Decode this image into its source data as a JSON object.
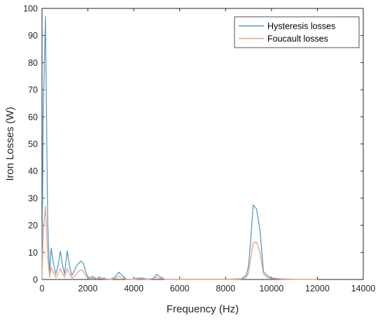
{
  "chart_data": {
    "type": "line",
    "title": "",
    "xlabel": "Frequency (Hz)",
    "ylabel": "Iron Losses (W)",
    "xlim": [
      0,
      14000
    ],
    "ylim": [
      0,
      100
    ],
    "xticks": [
      0,
      2000,
      4000,
      6000,
      8000,
      10000,
      12000,
      14000
    ],
    "yticks": [
      0,
      10,
      20,
      30,
      40,
      50,
      60,
      70,
      80,
      90,
      100
    ],
    "grid": false,
    "legend_position": "top-right",
    "series": [
      {
        "name": "Hysteresis losses",
        "color": "#5b9bc5",
        "points": [
          [
            0,
            0
          ],
          [
            50,
            60
          ],
          [
            150,
            97
          ],
          [
            250,
            20
          ],
          [
            330,
            2
          ],
          [
            400,
            11.5
          ],
          [
            500,
            6
          ],
          [
            600,
            2
          ],
          [
            700,
            5
          ],
          [
            800,
            10.5
          ],
          [
            900,
            5
          ],
          [
            980,
            2
          ],
          [
            1100,
            10.5
          ],
          [
            1200,
            5
          ],
          [
            1300,
            1.5
          ],
          [
            1400,
            3
          ],
          [
            1500,
            5
          ],
          [
            1600,
            6
          ],
          [
            1700,
            6.8
          ],
          [
            1800,
            6
          ],
          [
            1900,
            3
          ],
          [
            2000,
            1
          ],
          [
            2100,
            0.5
          ],
          [
            2200,
            1.2
          ],
          [
            2300,
            0.6
          ],
          [
            2400,
            0.3
          ],
          [
            2500,
            1
          ],
          [
            2600,
            0.3
          ],
          [
            2700,
            0.6
          ],
          [
            2800,
            0.2
          ],
          [
            3000,
            0.1
          ],
          [
            3200,
            1
          ],
          [
            3350,
            2.7
          ],
          [
            3500,
            1.5
          ],
          [
            3650,
            0.2
          ],
          [
            3800,
            0.1
          ],
          [
            4000,
            0.1
          ],
          [
            4200,
            0.5
          ],
          [
            4400,
            0.5
          ],
          [
            4600,
            0.1
          ],
          [
            4800,
            0.1
          ],
          [
            5000,
            1.8
          ],
          [
            5150,
            1
          ],
          [
            5350,
            0.1
          ],
          [
            6000,
            0.05
          ],
          [
            7000,
            0.05
          ],
          [
            8000,
            0.05
          ],
          [
            8700,
            0.3
          ],
          [
            8900,
            1.5
          ],
          [
            9000,
            5
          ],
          [
            9100,
            15
          ],
          [
            9200,
            27.5
          ],
          [
            9350,
            26
          ],
          [
            9500,
            18
          ],
          [
            9650,
            3
          ],
          [
            9800,
            1.5
          ],
          [
            10000,
            0.5
          ],
          [
            10500,
            0.2
          ],
          [
            11000,
            0.1
          ],
          [
            11500,
            0.1
          ],
          [
            12000,
            0.1
          ]
        ]
      },
      {
        "name": "Foucault losses",
        "color": "#e8a383",
        "points": [
          [
            0,
            0
          ],
          [
            60,
            18
          ],
          [
            150,
            27
          ],
          [
            250,
            8
          ],
          [
            330,
            0.8
          ],
          [
            400,
            4.5
          ],
          [
            500,
            2.5
          ],
          [
            600,
            0.8
          ],
          [
            700,
            2
          ],
          [
            800,
            4
          ],
          [
            900,
            2
          ],
          [
            980,
            0.8
          ],
          [
            1100,
            4
          ],
          [
            1200,
            2
          ],
          [
            1300,
            0.6
          ],
          [
            1400,
            1
          ],
          [
            1500,
            2
          ],
          [
            1600,
            3
          ],
          [
            1700,
            3.6
          ],
          [
            1800,
            3
          ],
          [
            1900,
            1.5
          ],
          [
            2000,
            0.4
          ],
          [
            2200,
            0.5
          ],
          [
            2400,
            0.2
          ],
          [
            2500,
            0.4
          ],
          [
            2700,
            0.2
          ],
          [
            3000,
            0.05
          ],
          [
            3200,
            0.4
          ],
          [
            3350,
            1.1
          ],
          [
            3500,
            0.6
          ],
          [
            3650,
            0.1
          ],
          [
            4000,
            0.05
          ],
          [
            4300,
            0.2
          ],
          [
            4600,
            0.05
          ],
          [
            5000,
            0.7
          ],
          [
            5200,
            0.3
          ],
          [
            5400,
            0.05
          ],
          [
            6000,
            0.02
          ],
          [
            7000,
            0.02
          ],
          [
            8000,
            0.02
          ],
          [
            8700,
            0.15
          ],
          [
            8900,
            0.8
          ],
          [
            9000,
            2.5
          ],
          [
            9100,
            8
          ],
          [
            9200,
            13.5
          ],
          [
            9350,
            13.8
          ],
          [
            9500,
            10
          ],
          [
            9650,
            2
          ],
          [
            9800,
            0.8
          ],
          [
            10000,
            0.3
          ],
          [
            10500,
            0.1
          ],
          [
            11000,
            0.05
          ],
          [
            12000,
            0.05
          ]
        ]
      }
    ]
  }
}
